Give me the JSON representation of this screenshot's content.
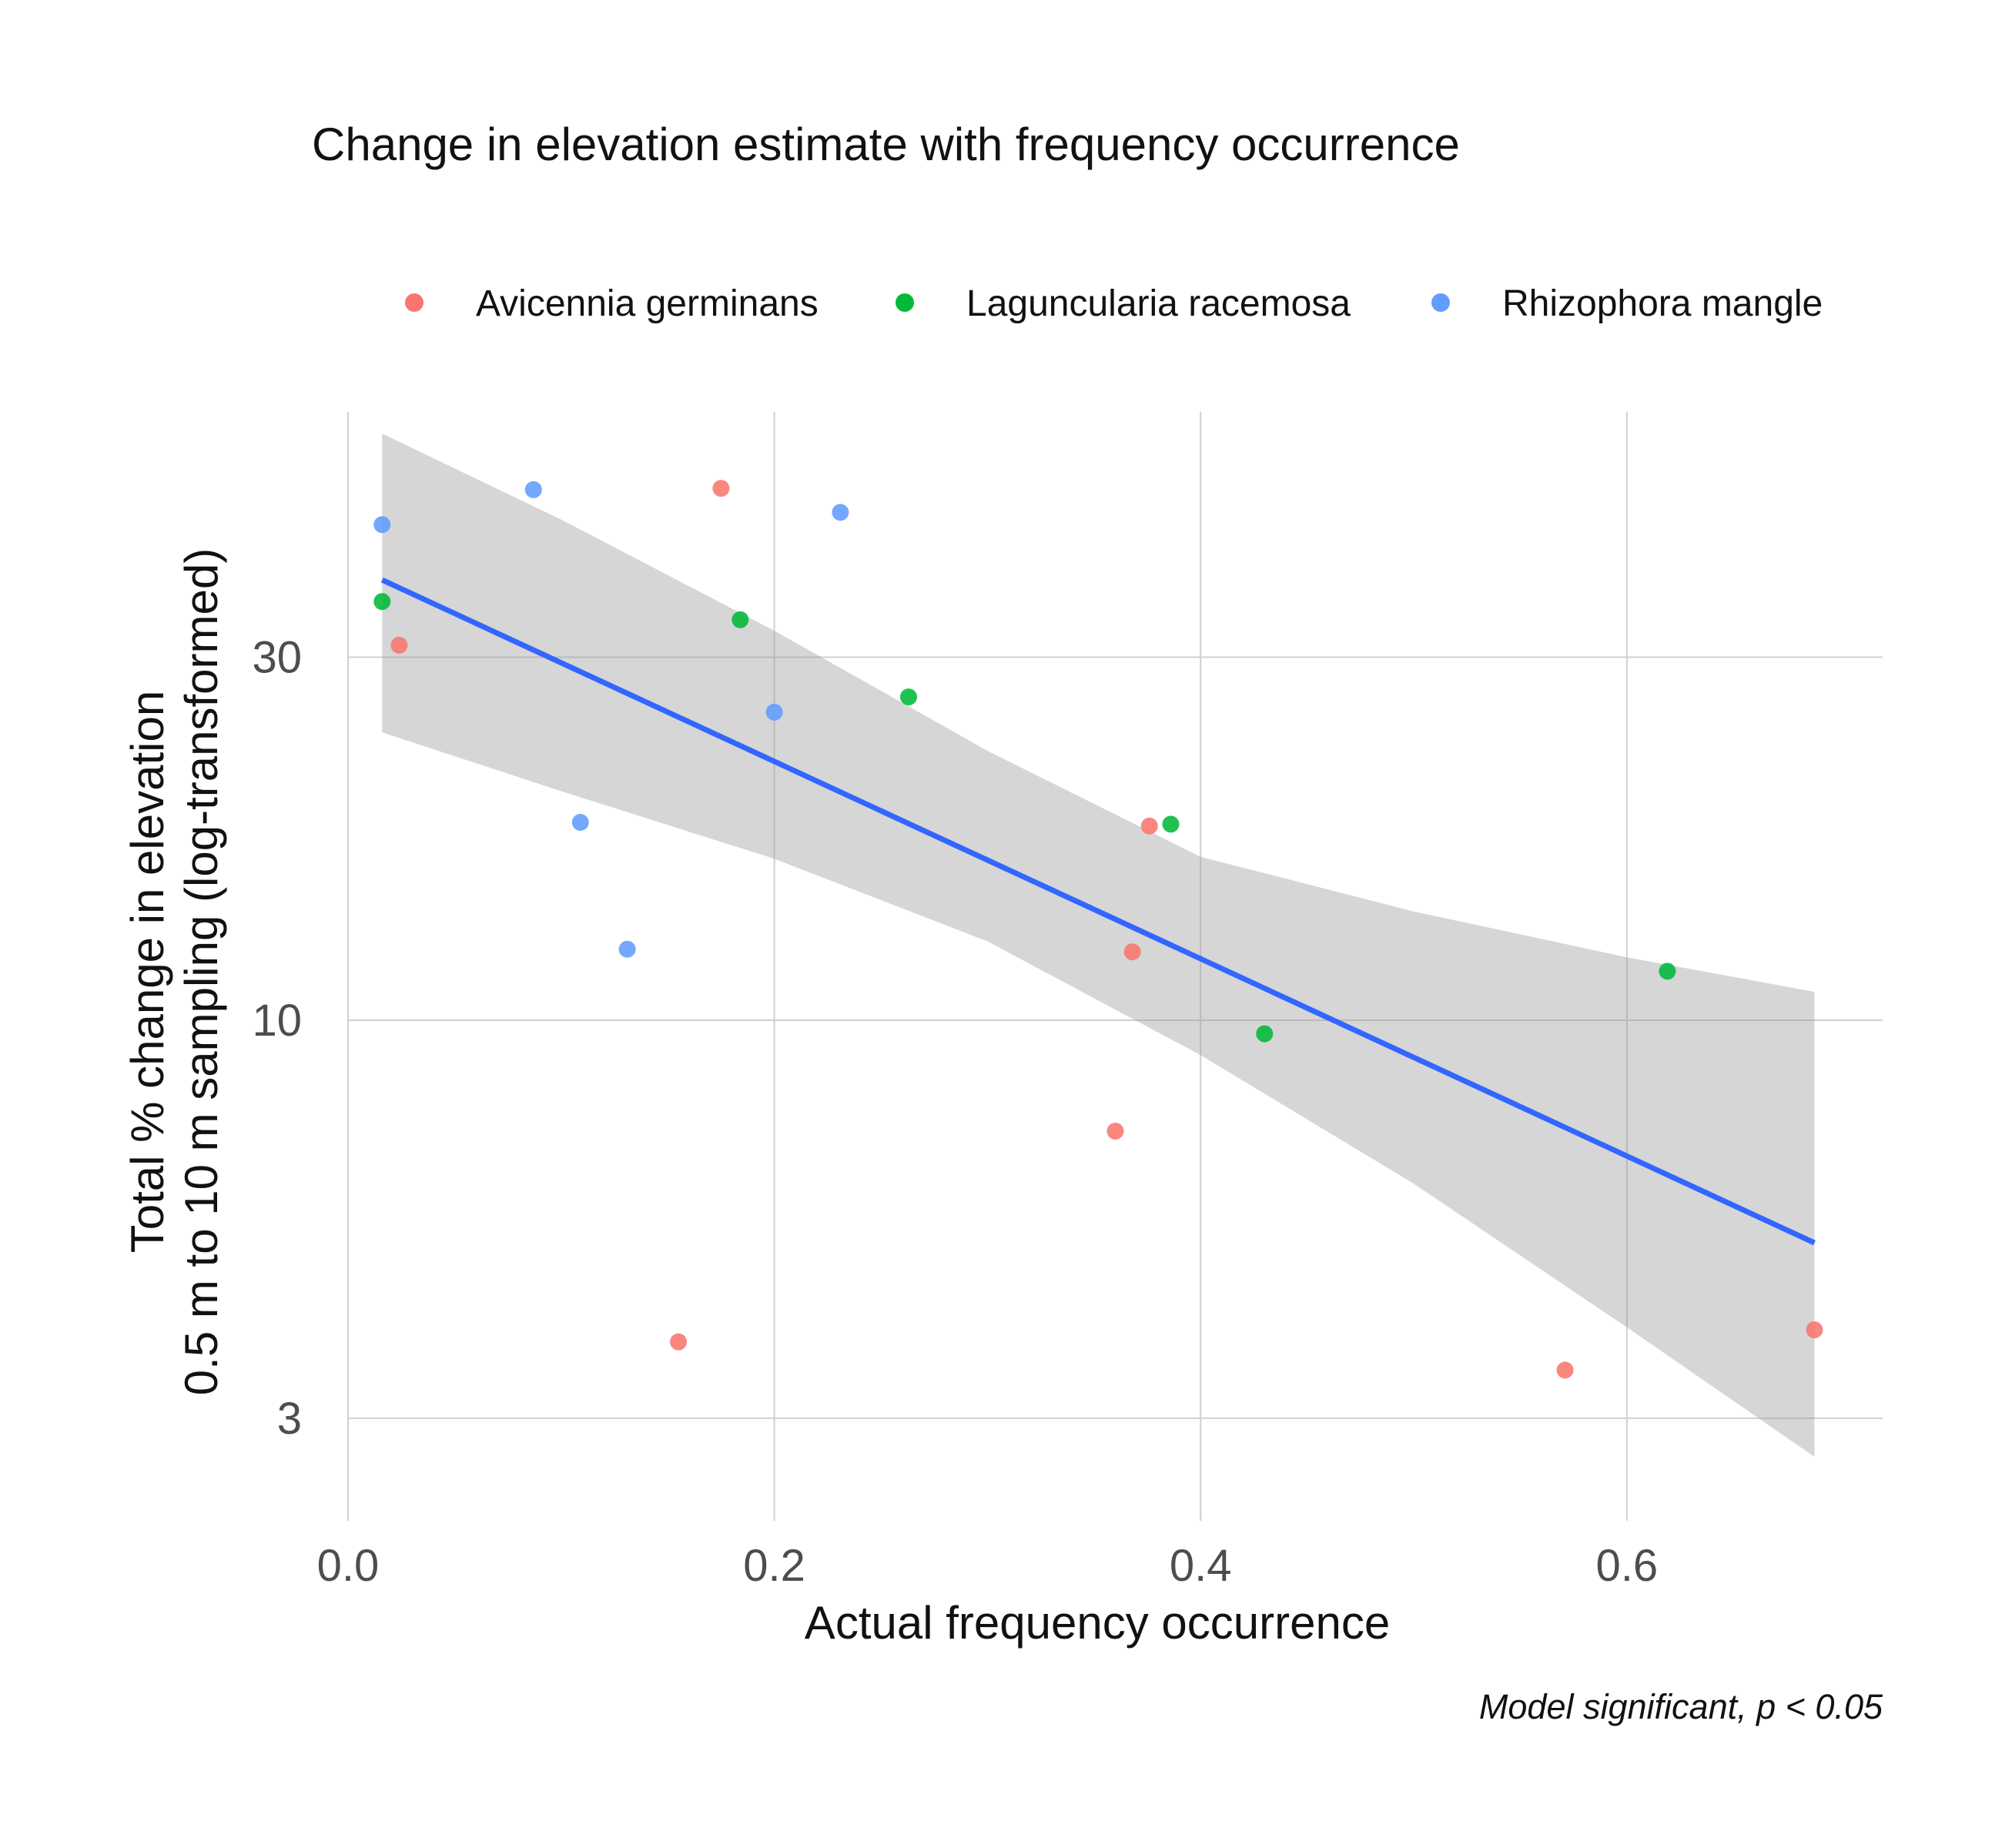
{
  "chart_data": {
    "type": "scatter",
    "title": "Change in elevation estimate with frequency occurrence",
    "xlabel": "Actual frequency occurrence",
    "ylabel_lines": [
      "Total % change in elevation",
      "0.5 m to 10 m sampling (log-transformed)"
    ],
    "caption": "Model significant, p  < 0.05",
    "y_scale": "log",
    "xlim": [
      0,
      0.72
    ],
    "ylim": [
      2.2,
      63
    ],
    "x_ticks": [
      {
        "value": 0.0,
        "label": "0.0"
      },
      {
        "value": 0.2,
        "label": "0.2"
      },
      {
        "value": 0.4,
        "label": "0.4"
      },
      {
        "value": 0.6,
        "label": "0.6"
      }
    ],
    "y_ticks": [
      {
        "value": 3,
        "label": "3"
      },
      {
        "value": 10,
        "label": "10"
      },
      {
        "value": 30,
        "label": "30"
      }
    ],
    "grid": true,
    "legend_position": "top",
    "series": [
      {
        "name": "Avicennia germinans",
        "color": "#F8766D",
        "points": [
          {
            "x": 0.024,
            "y": 31.1
          },
          {
            "x": 0.155,
            "y": 3.78
          },
          {
            "x": 0.175,
            "y": 50.0
          },
          {
            "x": 0.36,
            "y": 7.15
          },
          {
            "x": 0.368,
            "y": 12.3
          },
          {
            "x": 0.376,
            "y": 18.0
          },
          {
            "x": 0.571,
            "y": 3.47
          },
          {
            "x": 0.688,
            "y": 3.92
          }
        ]
      },
      {
        "name": "Laguncularia racemosa",
        "color": "#00BA38",
        "points": [
          {
            "x": 0.016,
            "y": 35.5
          },
          {
            "x": 0.184,
            "y": 33.6
          },
          {
            "x": 0.263,
            "y": 26.6
          },
          {
            "x": 0.386,
            "y": 18.1
          },
          {
            "x": 0.43,
            "y": 9.6
          },
          {
            "x": 0.619,
            "y": 11.6
          }
        ]
      },
      {
        "name": "Rhizophora mangle",
        "color": "#619CFF",
        "points": [
          {
            "x": 0.016,
            "y": 44.8
          },
          {
            "x": 0.087,
            "y": 49.8
          },
          {
            "x": 0.109,
            "y": 18.2
          },
          {
            "x": 0.131,
            "y": 12.4
          },
          {
            "x": 0.2,
            "y": 25.4
          },
          {
            "x": 0.231,
            "y": 46.5
          }
        ]
      }
    ],
    "fit": {
      "line_color": "#3366FF",
      "band_color": "#999999",
      "line": [
        {
          "x": 0.016,
          "y": 37.9
        },
        {
          "x": 0.688,
          "y": 5.1
        }
      ],
      "band": [
        {
          "x": 0.016,
          "lo": 23.9,
          "hi": 59.0
        },
        {
          "x": 0.1,
          "lo": 20.0,
          "hi": 45.5
        },
        {
          "x": 0.2,
          "lo": 16.3,
          "hi": 32.5
        },
        {
          "x": 0.3,
          "lo": 12.7,
          "hi": 22.6
        },
        {
          "x": 0.4,
          "lo": 9.0,
          "hi": 16.4
        },
        {
          "x": 0.5,
          "lo": 6.1,
          "hi": 13.9
        },
        {
          "x": 0.6,
          "lo": 3.95,
          "hi": 12.1
        },
        {
          "x": 0.688,
          "lo": 2.67,
          "hi": 10.9
        }
      ]
    }
  }
}
